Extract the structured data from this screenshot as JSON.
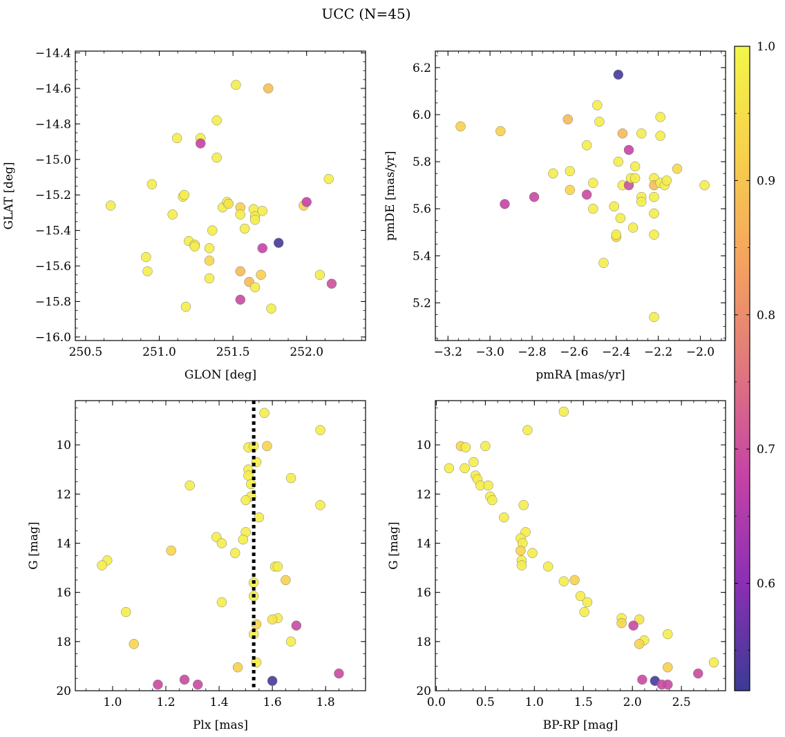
{
  "title": "UCC (N=45)",
  "colorbar": {
    "min": 0.52,
    "max": 1.0,
    "ticks": [
      0.6,
      0.7,
      0.8,
      0.9,
      1.0
    ],
    "tick_labels": [
      "0.6",
      "0.7",
      "0.8",
      "0.9",
      "1.0"
    ],
    "cmap_stops": [
      "#3b3b94",
      "#8a2fb5",
      "#c543a6",
      "#e0777d",
      "#f5a35f",
      "#f7d04c",
      "#f3f64a"
    ]
  },
  "chart_data": [
    {
      "type": "scatter",
      "id": "glon_glat",
      "xlabel": "GLON [deg]",
      "ylabel": "GLAT [deg]",
      "xlim": [
        250.43,
        252.4
      ],
      "ylim": [
        -16.02,
        -14.39
      ],
      "x_ticks": [
        250.5,
        251.0,
        251.5,
        252.0
      ],
      "x_tick_labels": [
        "250.5",
        "251.0",
        "251.5",
        "252.0"
      ],
      "y_ticks": [
        -16.0,
        -15.8,
        -15.6,
        -15.4,
        -15.2,
        -15.0,
        -14.8,
        -14.6,
        -14.4
      ],
      "y_tick_labels": [
        "−16.0",
        "−15.8",
        "−15.6",
        "−15.4",
        "−15.2",
        "−15.0",
        "−14.8",
        "−14.6",
        "−14.4"
      ],
      "points": [
        {
          "x": 250.67,
          "y": -15.26,
          "c": 0.98
        },
        {
          "x": 250.91,
          "y": -15.55,
          "c": 0.98
        },
        {
          "x": 250.92,
          "y": -15.63,
          "c": 0.98
        },
        {
          "x": 250.95,
          "y": -15.14,
          "c": 0.98
        },
        {
          "x": 251.09,
          "y": -15.31,
          "c": 0.98
        },
        {
          "x": 251.12,
          "y": -14.88,
          "c": 0.98
        },
        {
          "x": 251.16,
          "y": -15.21,
          "c": 0.98
        },
        {
          "x": 251.17,
          "y": -15.2,
          "c": 0.98
        },
        {
          "x": 251.18,
          "y": -15.83,
          "c": 0.98
        },
        {
          "x": 251.2,
          "y": -15.46,
          "c": 0.98
        },
        {
          "x": 251.24,
          "y": -15.48,
          "c": 0.98
        },
        {
          "x": 251.24,
          "y": -15.49,
          "c": 0.98
        },
        {
          "x": 251.28,
          "y": -14.88,
          "c": 0.98
        },
        {
          "x": 251.28,
          "y": -14.91,
          "c": 0.68
        },
        {
          "x": 251.34,
          "y": -15.5,
          "c": 0.98
        },
        {
          "x": 251.34,
          "y": -15.57,
          "c": 0.93
        },
        {
          "x": 251.34,
          "y": -15.67,
          "c": 0.98
        },
        {
          "x": 251.36,
          "y": -15.4,
          "c": 0.98
        },
        {
          "x": 251.39,
          "y": -14.99,
          "c": 0.98
        },
        {
          "x": 251.39,
          "y": -14.78,
          "c": 0.98
        },
        {
          "x": 251.43,
          "y": -15.27,
          "c": 0.98
        },
        {
          "x": 251.46,
          "y": -15.24,
          "c": 0.98
        },
        {
          "x": 251.47,
          "y": -15.25,
          "c": 0.96
        },
        {
          "x": 251.52,
          "y": -14.58,
          "c": 0.98
        },
        {
          "x": 251.55,
          "y": -15.27,
          "c": 0.92
        },
        {
          "x": 251.55,
          "y": -15.31,
          "c": 0.98
        },
        {
          "x": 251.55,
          "y": -15.63,
          "c": 0.88
        },
        {
          "x": 251.55,
          "y": -15.79,
          "c": 0.69
        },
        {
          "x": 251.58,
          "y": -15.39,
          "c": 0.98
        },
        {
          "x": 251.61,
          "y": -15.69,
          "c": 0.88
        },
        {
          "x": 251.64,
          "y": -15.28,
          "c": 0.98
        },
        {
          "x": 251.65,
          "y": -15.32,
          "c": 0.98
        },
        {
          "x": 251.65,
          "y": -15.34,
          "c": 0.98
        },
        {
          "x": 251.65,
          "y": -15.72,
          "c": 0.98
        },
        {
          "x": 251.69,
          "y": -15.65,
          "c": 0.92
        },
        {
          "x": 251.7,
          "y": -15.29,
          "c": 0.98
        },
        {
          "x": 251.7,
          "y": -15.5,
          "c": 0.68
        },
        {
          "x": 251.74,
          "y": -14.6,
          "c": 0.89
        },
        {
          "x": 251.76,
          "y": -15.84,
          "c": 0.98
        },
        {
          "x": 251.81,
          "y": -15.47,
          "c": 0.53
        },
        {
          "x": 251.98,
          "y": -15.26,
          "c": 0.93
        },
        {
          "x": 252.0,
          "y": -15.24,
          "c": 0.68
        },
        {
          "x": 252.09,
          "y": -15.65,
          "c": 0.98
        },
        {
          "x": 252.15,
          "y": -15.11,
          "c": 0.98
        },
        {
          "x": 252.17,
          "y": -15.7,
          "c": 0.7
        }
      ]
    },
    {
      "type": "scatter",
      "id": "pm",
      "xlabel": "pmRA [mas/yr]",
      "ylabel": "pmDE [mas/yr]",
      "xlim": [
        -3.26,
        -1.88
      ],
      "ylim": [
        5.04,
        6.27
      ],
      "x_ticks": [
        -3.2,
        -3.0,
        -2.8,
        -2.6,
        -2.4,
        -2.2,
        -2.0
      ],
      "x_tick_labels": [
        "−3.2",
        "−3.0",
        "−2.8",
        "−2.6",
        "−2.4",
        "−2.2",
        "−2.0"
      ],
      "y_ticks": [
        5.2,
        5.4,
        5.6,
        5.8,
        6.0,
        6.2
      ],
      "y_tick_labels": [
        "5.2",
        "5.4",
        "5.6",
        "5.8",
        "6.0",
        "6.2"
      ],
      "points": [
        {
          "x": -3.14,
          "y": 5.95,
          "c": 0.92
        },
        {
          "x": -2.95,
          "y": 5.93,
          "c": 0.92
        },
        {
          "x": -2.93,
          "y": 5.62,
          "c": 0.68
        },
        {
          "x": -2.79,
          "y": 5.65,
          "c": 0.69
        },
        {
          "x": -2.7,
          "y": 5.75,
          "c": 0.98
        },
        {
          "x": -2.63,
          "y": 5.98,
          "c": 0.88
        },
        {
          "x": -2.62,
          "y": 5.76,
          "c": 0.98
        },
        {
          "x": -2.62,
          "y": 5.68,
          "c": 0.93
        },
        {
          "x": -2.54,
          "y": 5.87,
          "c": 0.98
        },
        {
          "x": -2.54,
          "y": 5.66,
          "c": 0.69
        },
        {
          "x": -2.51,
          "y": 5.71,
          "c": 0.98
        },
        {
          "x": -2.51,
          "y": 5.6,
          "c": 0.98
        },
        {
          "x": -2.49,
          "y": 6.04,
          "c": 0.98
        },
        {
          "x": -2.48,
          "y": 5.97,
          "c": 0.98
        },
        {
          "x": -2.46,
          "y": 5.37,
          "c": 0.98
        },
        {
          "x": -2.41,
          "y": 5.61,
          "c": 0.98
        },
        {
          "x": -2.4,
          "y": 5.48,
          "c": 0.93
        },
        {
          "x": -2.4,
          "y": 5.49,
          "c": 0.98
        },
        {
          "x": -2.39,
          "y": 6.17,
          "c": 0.53
        },
        {
          "x": -2.39,
          "y": 5.8,
          "c": 0.98
        },
        {
          "x": -2.38,
          "y": 5.56,
          "c": 0.98
        },
        {
          "x": -2.37,
          "y": 5.92,
          "c": 0.88
        },
        {
          "x": -2.37,
          "y": 5.7,
          "c": 0.98
        },
        {
          "x": -2.34,
          "y": 5.85,
          "c": 0.68
        },
        {
          "x": -2.34,
          "y": 5.7,
          "c": 0.7
        },
        {
          "x": -2.33,
          "y": 5.73,
          "c": 0.98
        },
        {
          "x": -2.32,
          "y": 5.52,
          "c": 0.98
        },
        {
          "x": -2.31,
          "y": 5.78,
          "c": 0.98
        },
        {
          "x": -2.31,
          "y": 5.73,
          "c": 0.98
        },
        {
          "x": -2.28,
          "y": 5.92,
          "c": 0.98
        },
        {
          "x": -2.28,
          "y": 5.65,
          "c": 0.98
        },
        {
          "x": -2.28,
          "y": 5.63,
          "c": 0.98
        },
        {
          "x": -2.22,
          "y": 5.73,
          "c": 0.98
        },
        {
          "x": -2.22,
          "y": 5.7,
          "c": 0.89
        },
        {
          "x": -2.22,
          "y": 5.65,
          "c": 0.98
        },
        {
          "x": -2.22,
          "y": 5.58,
          "c": 0.98
        },
        {
          "x": -2.22,
          "y": 5.49,
          "c": 0.98
        },
        {
          "x": -2.22,
          "y": 5.14,
          "c": 0.98
        },
        {
          "x": -2.19,
          "y": 5.99,
          "c": 0.98
        },
        {
          "x": -2.19,
          "y": 5.91,
          "c": 0.98
        },
        {
          "x": -2.19,
          "y": 5.71,
          "c": 0.98
        },
        {
          "x": -2.17,
          "y": 5.7,
          "c": 0.98
        },
        {
          "x": -2.16,
          "y": 5.72,
          "c": 0.98
        },
        {
          "x": -2.11,
          "y": 5.77,
          "c": 0.94
        },
        {
          "x": -1.98,
          "y": 5.7,
          "c": 0.98
        }
      ]
    },
    {
      "type": "scatter",
      "id": "plx_g",
      "xlabel": "Plx [mas]",
      "ylabel": "G [mag]",
      "xlim": [
        0.86,
        1.95
      ],
      "ylim": [
        20.0,
        8.2
      ],
      "y_inverted": true,
      "vline": 1.53,
      "x_ticks": [
        1.0,
        1.2,
        1.4,
        1.6,
        1.8
      ],
      "x_tick_labels": [
        "1.0",
        "1.2",
        "1.4",
        "1.6",
        "1.8"
      ],
      "y_ticks": [
        10,
        12,
        14,
        16,
        18,
        20
      ],
      "y_tick_labels": [
        "10",
        "12",
        "14",
        "16",
        "18",
        "20"
      ],
      "points": [
        {
          "x": 1.57,
          "y": 8.7,
          "c": 0.98
        },
        {
          "x": 1.78,
          "y": 9.4,
          "c": 0.98
        },
        {
          "x": 1.51,
          "y": 10.1,
          "c": 0.98
        },
        {
          "x": 1.53,
          "y": 10.05,
          "c": 0.98
        },
        {
          "x": 1.58,
          "y": 10.05,
          "c": 0.93
        },
        {
          "x": 1.54,
          "y": 10.7,
          "c": 0.98
        },
        {
          "x": 1.51,
          "y": 11.0,
          "c": 0.98
        },
        {
          "x": 1.51,
          "y": 11.25,
          "c": 0.98
        },
        {
          "x": 1.67,
          "y": 11.35,
          "c": 0.98
        },
        {
          "x": 1.29,
          "y": 11.65,
          "c": 0.98
        },
        {
          "x": 1.52,
          "y": 11.6,
          "c": 0.98
        },
        {
          "x": 1.52,
          "y": 12.1,
          "c": 0.98
        },
        {
          "x": 1.5,
          "y": 12.25,
          "c": 0.98
        },
        {
          "x": 1.78,
          "y": 12.45,
          "c": 0.98
        },
        {
          "x": 1.55,
          "y": 12.95,
          "c": 0.98
        },
        {
          "x": 1.5,
          "y": 13.55,
          "c": 0.98
        },
        {
          "x": 1.39,
          "y": 13.75,
          "c": 0.98
        },
        {
          "x": 1.49,
          "y": 13.85,
          "c": 0.98
        },
        {
          "x": 1.41,
          "y": 14.0,
          "c": 0.98
        },
        {
          "x": 1.22,
          "y": 14.3,
          "c": 0.93
        },
        {
          "x": 1.46,
          "y": 14.4,
          "c": 0.98
        },
        {
          "x": 0.98,
          "y": 14.7,
          "c": 0.98
        },
        {
          "x": 0.96,
          "y": 14.9,
          "c": 0.98
        },
        {
          "x": 1.61,
          "y": 14.95,
          "c": 0.98
        },
        {
          "x": 1.62,
          "y": 14.95,
          "c": 0.98
        },
        {
          "x": 1.65,
          "y": 15.5,
          "c": 0.92
        },
        {
          "x": 1.53,
          "y": 15.6,
          "c": 0.98
        },
        {
          "x": 1.53,
          "y": 16.15,
          "c": 0.98
        },
        {
          "x": 1.41,
          "y": 16.4,
          "c": 0.98
        },
        {
          "x": 1.05,
          "y": 16.8,
          "c": 0.98
        },
        {
          "x": 1.62,
          "y": 17.05,
          "c": 0.98
        },
        {
          "x": 1.6,
          "y": 17.1,
          "c": 0.96
        },
        {
          "x": 1.54,
          "y": 17.3,
          "c": 0.93
        },
        {
          "x": 1.69,
          "y": 17.35,
          "c": 0.69
        },
        {
          "x": 1.53,
          "y": 17.7,
          "c": 0.98
        },
        {
          "x": 1.67,
          "y": 18.0,
          "c": 0.98
        },
        {
          "x": 1.08,
          "y": 18.1,
          "c": 0.93
        },
        {
          "x": 1.54,
          "y": 18.85,
          "c": 0.98
        },
        {
          "x": 1.47,
          "y": 19.05,
          "c": 0.92
        },
        {
          "x": 1.85,
          "y": 19.3,
          "c": 0.69
        },
        {
          "x": 1.27,
          "y": 19.55,
          "c": 0.69
        },
        {
          "x": 1.6,
          "y": 19.6,
          "c": 0.53
        },
        {
          "x": 1.17,
          "y": 19.75,
          "c": 0.69
        },
        {
          "x": 1.32,
          "y": 19.75,
          "c": 0.69
        }
      ]
    },
    {
      "type": "scatter",
      "id": "cmd",
      "xlabel": "BP-RP [mag]",
      "ylabel": "G [mag]",
      "xlim": [
        -0.01,
        2.95
      ],
      "ylim": [
        20.0,
        8.2
      ],
      "y_inverted": true,
      "x_ticks": [
        0.0,
        0.5,
        1.0,
        1.5,
        2.0,
        2.5
      ],
      "x_tick_labels": [
        "0.0",
        "0.5",
        "1.0",
        "1.5",
        "2.0",
        "2.5"
      ],
      "y_ticks": [
        10,
        12,
        14,
        16,
        18,
        20
      ],
      "y_tick_labels": [
        "10",
        "12",
        "14",
        "16",
        "18",
        "20"
      ],
      "points": [
        {
          "x": 1.3,
          "y": 8.65,
          "c": 0.98
        },
        {
          "x": 0.93,
          "y": 9.4,
          "c": 0.98
        },
        {
          "x": 0.25,
          "y": 10.05,
          "c": 0.93
        },
        {
          "x": 0.3,
          "y": 10.1,
          "c": 0.98
        },
        {
          "x": 0.5,
          "y": 10.05,
          "c": 0.98
        },
        {
          "x": 0.38,
          "y": 10.7,
          "c": 0.98
        },
        {
          "x": 0.13,
          "y": 10.95,
          "c": 0.98
        },
        {
          "x": 0.29,
          "y": 10.95,
          "c": 0.98
        },
        {
          "x": 0.4,
          "y": 11.25,
          "c": 0.98
        },
        {
          "x": 0.42,
          "y": 11.4,
          "c": 0.98
        },
        {
          "x": 0.45,
          "y": 11.65,
          "c": 0.98
        },
        {
          "x": 0.53,
          "y": 11.65,
          "c": 0.98
        },
        {
          "x": 0.55,
          "y": 12.1,
          "c": 0.98
        },
        {
          "x": 0.57,
          "y": 12.25,
          "c": 0.98
        },
        {
          "x": 0.69,
          "y": 12.95,
          "c": 0.98
        },
        {
          "x": 0.89,
          "y": 12.45,
          "c": 0.98
        },
        {
          "x": 0.91,
          "y": 13.55,
          "c": 0.98
        },
        {
          "x": 0.86,
          "y": 13.8,
          "c": 0.98
        },
        {
          "x": 0.88,
          "y": 14.0,
          "c": 0.98
        },
        {
          "x": 0.86,
          "y": 14.3,
          "c": 0.93
        },
        {
          "x": 0.98,
          "y": 14.4,
          "c": 0.98
        },
        {
          "x": 0.87,
          "y": 14.7,
          "c": 0.98
        },
        {
          "x": 0.87,
          "y": 14.9,
          "c": 0.98
        },
        {
          "x": 1.14,
          "y": 14.95,
          "c": 0.98
        },
        {
          "x": 1.3,
          "y": 15.55,
          "c": 0.98
        },
        {
          "x": 1.41,
          "y": 15.5,
          "c": 0.92
        },
        {
          "x": 1.47,
          "y": 16.15,
          "c": 0.98
        },
        {
          "x": 1.54,
          "y": 16.4,
          "c": 0.98
        },
        {
          "x": 1.51,
          "y": 16.8,
          "c": 0.98
        },
        {
          "x": 1.89,
          "y": 17.05,
          "c": 0.98
        },
        {
          "x": 2.07,
          "y": 17.1,
          "c": 0.96
        },
        {
          "x": 1.89,
          "y": 17.25,
          "c": 0.93
        },
        {
          "x": 2.01,
          "y": 17.35,
          "c": 0.69
        },
        {
          "x": 2.36,
          "y": 17.7,
          "c": 0.98
        },
        {
          "x": 2.12,
          "y": 17.95,
          "c": 0.98
        },
        {
          "x": 2.07,
          "y": 18.1,
          "c": 0.93
        },
        {
          "x": 2.83,
          "y": 18.85,
          "c": 0.98
        },
        {
          "x": 2.36,
          "y": 19.05,
          "c": 0.92
        },
        {
          "x": 2.67,
          "y": 19.3,
          "c": 0.69
        },
        {
          "x": 2.1,
          "y": 19.55,
          "c": 0.69
        },
        {
          "x": 2.23,
          "y": 19.6,
          "c": 0.53
        },
        {
          "x": 2.3,
          "y": 19.75,
          "c": 0.69
        },
        {
          "x": 2.36,
          "y": 19.75,
          "c": 0.69
        }
      ]
    }
  ]
}
